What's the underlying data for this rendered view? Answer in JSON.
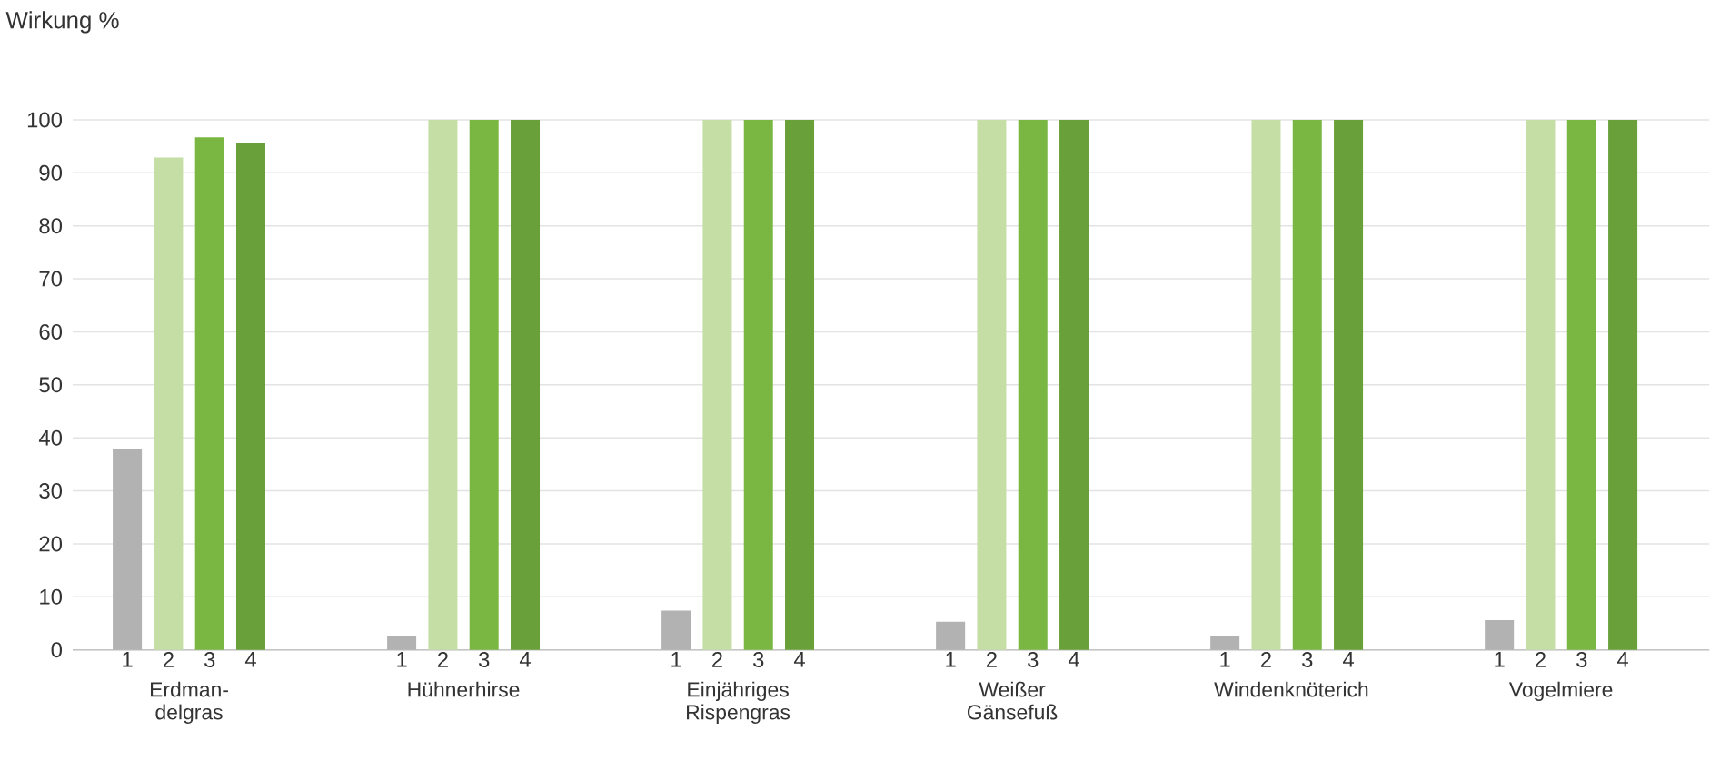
{
  "chart_data": {
    "type": "bar",
    "ylabel": "Wirkung %",
    "categories": [
      "Erdman-delgras",
      "Hühnerhirse",
      "Einjähriges Rispengras",
      "Weißer Gänsefuß",
      "Windenknöterich",
      "Vogelmiere"
    ],
    "series": [
      {
        "name": "1",
        "color": "#b2b2b2",
        "values": [
          37.9,
          2.7,
          7.4,
          5.3,
          2.7,
          5.6
        ]
      },
      {
        "name": "2",
        "color": "#c5dea5",
        "values": [
          92.9,
          100,
          100,
          100,
          100,
          100
        ]
      },
      {
        "name": "3",
        "color": "#7ab742",
        "values": [
          96.7,
          100,
          100,
          100,
          100,
          100
        ]
      },
      {
        "name": "4",
        "color": "#6aa03a",
        "values": [
          95.6,
          100,
          100,
          100,
          100,
          100
        ]
      }
    ],
    "ylim": [
      0,
      100
    ],
    "yticks": [
      0,
      10,
      20,
      30,
      40,
      50,
      60,
      70,
      80,
      90,
      100
    ],
    "grid": "y"
  }
}
